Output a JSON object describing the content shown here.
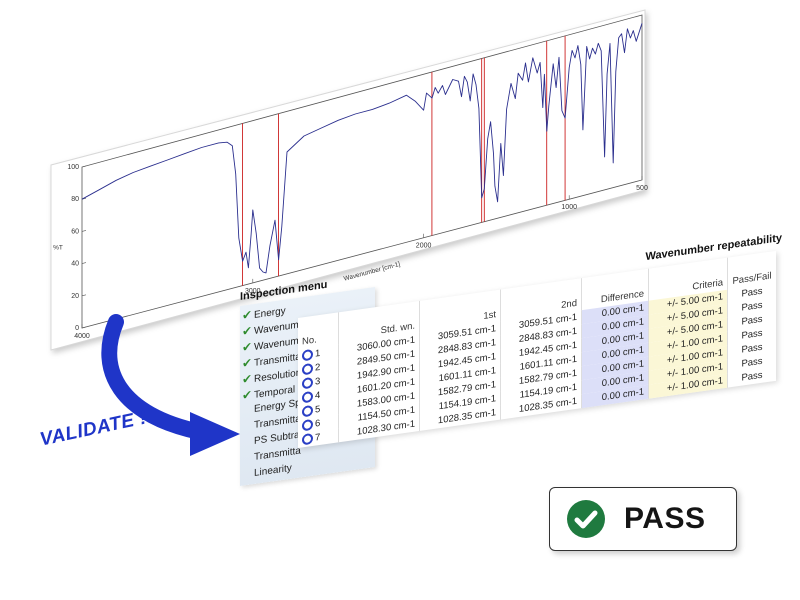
{
  "chart": {
    "ylabel": "%T",
    "xlabel": "Wavenumber [cm-1]",
    "y_ticks": [
      "100",
      "80",
      "60",
      "40",
      "20",
      "0"
    ],
    "x_ticks": [
      "4000",
      "3000",
      "2000",
      "1000",
      "500"
    ],
    "line_color": "#2b2f8e",
    "marker_color": "#cc2222",
    "markers_cm1": [
      3060.0,
      2849.5,
      1942.9,
      1601.2,
      1583.0,
      1154.5,
      1028.3
    ]
  },
  "chart_data": {
    "type": "line",
    "title": "",
    "xlabel": "Wavenumber [cm-1]",
    "ylabel": "%T",
    "xlim": [
      4000,
      500
    ],
    "ylim": [
      0,
      100
    ],
    "grid": false,
    "series": [
      {
        "x": [
          4000,
          3900,
          3800,
          3700,
          3600,
          3500,
          3400,
          3300,
          3200,
          3150,
          3120,
          3100,
          3082,
          3060,
          3040,
          3026,
          3010,
          3000,
          2980,
          2960,
          2940,
          2923,
          2900,
          2870,
          2849,
          2830,
          2800,
          2700,
          2600,
          2500,
          2400,
          2300,
          2200,
          2100,
          2050,
          2000,
          1980,
          1942,
          1920,
          1900,
          1870,
          1850,
          1800,
          1760,
          1740,
          1720,
          1700,
          1680,
          1660,
          1640,
          1620,
          1601,
          1583,
          1560,
          1540,
          1520,
          1510,
          1492,
          1470,
          1452,
          1430,
          1400,
          1370,
          1350,
          1320,
          1300,
          1280,
          1250,
          1220,
          1200,
          1181,
          1170,
          1154,
          1140,
          1110,
          1090,
          1070,
          1050,
          1028,
          1000,
          980,
          960,
          940,
          920,
          906,
          880,
          860,
          840,
          820,
          800,
          780,
          757,
          740,
          720,
          698,
          680,
          660,
          640,
          620,
          600,
          580,
          560,
          540,
          520,
          500
        ],
        "y": [
          80,
          83,
          86,
          88,
          89,
          90,
          91,
          92,
          92,
          91,
          88,
          70,
          30,
          15,
          20,
          10,
          30,
          45,
          30,
          8,
          5,
          4,
          20,
          35,
          10,
          30,
          75,
          82,
          84,
          86,
          87,
          87,
          88,
          90,
          85,
          78,
          88,
          84,
          90,
          86,
          90,
          84,
          92,
          90,
          80,
          92,
          88,
          76,
          92,
          85,
          70,
          15,
          20,
          50,
          60,
          40,
          20,
          10,
          45,
          25,
          65,
          80,
          70,
          85,
          80,
          90,
          78,
          92,
          82,
          88,
          60,
          80,
          45,
          60,
          85,
          70,
          88,
          55,
          50,
          80,
          90,
          85,
          92,
          80,
          40,
          90,
          82,
          88,
          84,
          90,
          85,
          20,
          70,
          88,
          15,
          70,
          90,
          92,
          80,
          94,
          88,
          92,
          85,
          90,
          95
        ]
      }
    ]
  },
  "menu": {
    "title": "Inspection menu",
    "items": [
      {
        "label": "Energy",
        "checked": true
      },
      {
        "label": "Wavenumber Accuracy",
        "checked": true
      },
      {
        "label": "Wavenumber Repeatabi...",
        "checked": true
      },
      {
        "label": "Transmittance Repeata...",
        "checked": true
      },
      {
        "label": "Resolution",
        "checked": true
      },
      {
        "label": "Temporal Change of Tr...",
        "checked": true
      },
      {
        "label": "Energy Spectrum",
        "checked": false
      },
      {
        "label": "Transmitta",
        "checked": false
      },
      {
        "label": "PS Subtrac",
        "checked": false
      },
      {
        "label": "Transmitta",
        "checked": false
      },
      {
        "label": "Linearity",
        "checked": false
      }
    ]
  },
  "validate_label": "VALIDATE !",
  "repeatability": {
    "title": "Wavenumber repeatability",
    "headers": {
      "no": "No.",
      "std": "Std. wn.",
      "first": "1st",
      "second": "2nd",
      "difference": "Difference",
      "criteria": "Criteria",
      "passfail": "Pass/Fail"
    },
    "rows": [
      {
        "no": "1",
        "std": "3060.00 cm-1",
        "first": "3059.51 cm-1",
        "second": "3059.51 cm-1",
        "difference": "0.00 cm-1",
        "criteria": "+/- 5.00 cm-1",
        "result": "Pass"
      },
      {
        "no": "2",
        "std": "2849.50 cm-1",
        "first": "2848.83 cm-1",
        "second": "2848.83 cm-1",
        "difference": "0.00 cm-1",
        "criteria": "+/- 5.00 cm-1",
        "result": "Pass"
      },
      {
        "no": "3",
        "std": "1942.90 cm-1",
        "first": "1942.45 cm-1",
        "second": "1942.45 cm-1",
        "difference": "0.00 cm-1",
        "criteria": "+/- 5.00 cm-1",
        "result": "Pass"
      },
      {
        "no": "4",
        "std": "1601.20 cm-1",
        "first": "1601.11 cm-1",
        "second": "1601.11 cm-1",
        "difference": "0.00 cm-1",
        "criteria": "+/- 1.00 cm-1",
        "result": "Pass"
      },
      {
        "no": "5",
        "std": "1583.00 cm-1",
        "first": "1582.79 cm-1",
        "second": "1582.79 cm-1",
        "difference": "0.00 cm-1",
        "criteria": "+/- 1.00 cm-1",
        "result": "Pass"
      },
      {
        "no": "6",
        "std": "1154.50 cm-1",
        "first": "1154.19 cm-1",
        "second": "1154.19 cm-1",
        "difference": "0.00 cm-1",
        "criteria": "+/- 1.00 cm-1",
        "result": "Pass"
      },
      {
        "no": "7",
        "std": "1028.30 cm-1",
        "first": "1028.35 cm-1",
        "second": "1028.35 cm-1",
        "difference": "0.00 cm-1",
        "criteria": "+/- 1.00 cm-1",
        "result": "Pass"
      }
    ]
  },
  "pass_badge": {
    "label": "PASS",
    "icon": "check-circle-icon",
    "color": "#1f7a3f"
  }
}
